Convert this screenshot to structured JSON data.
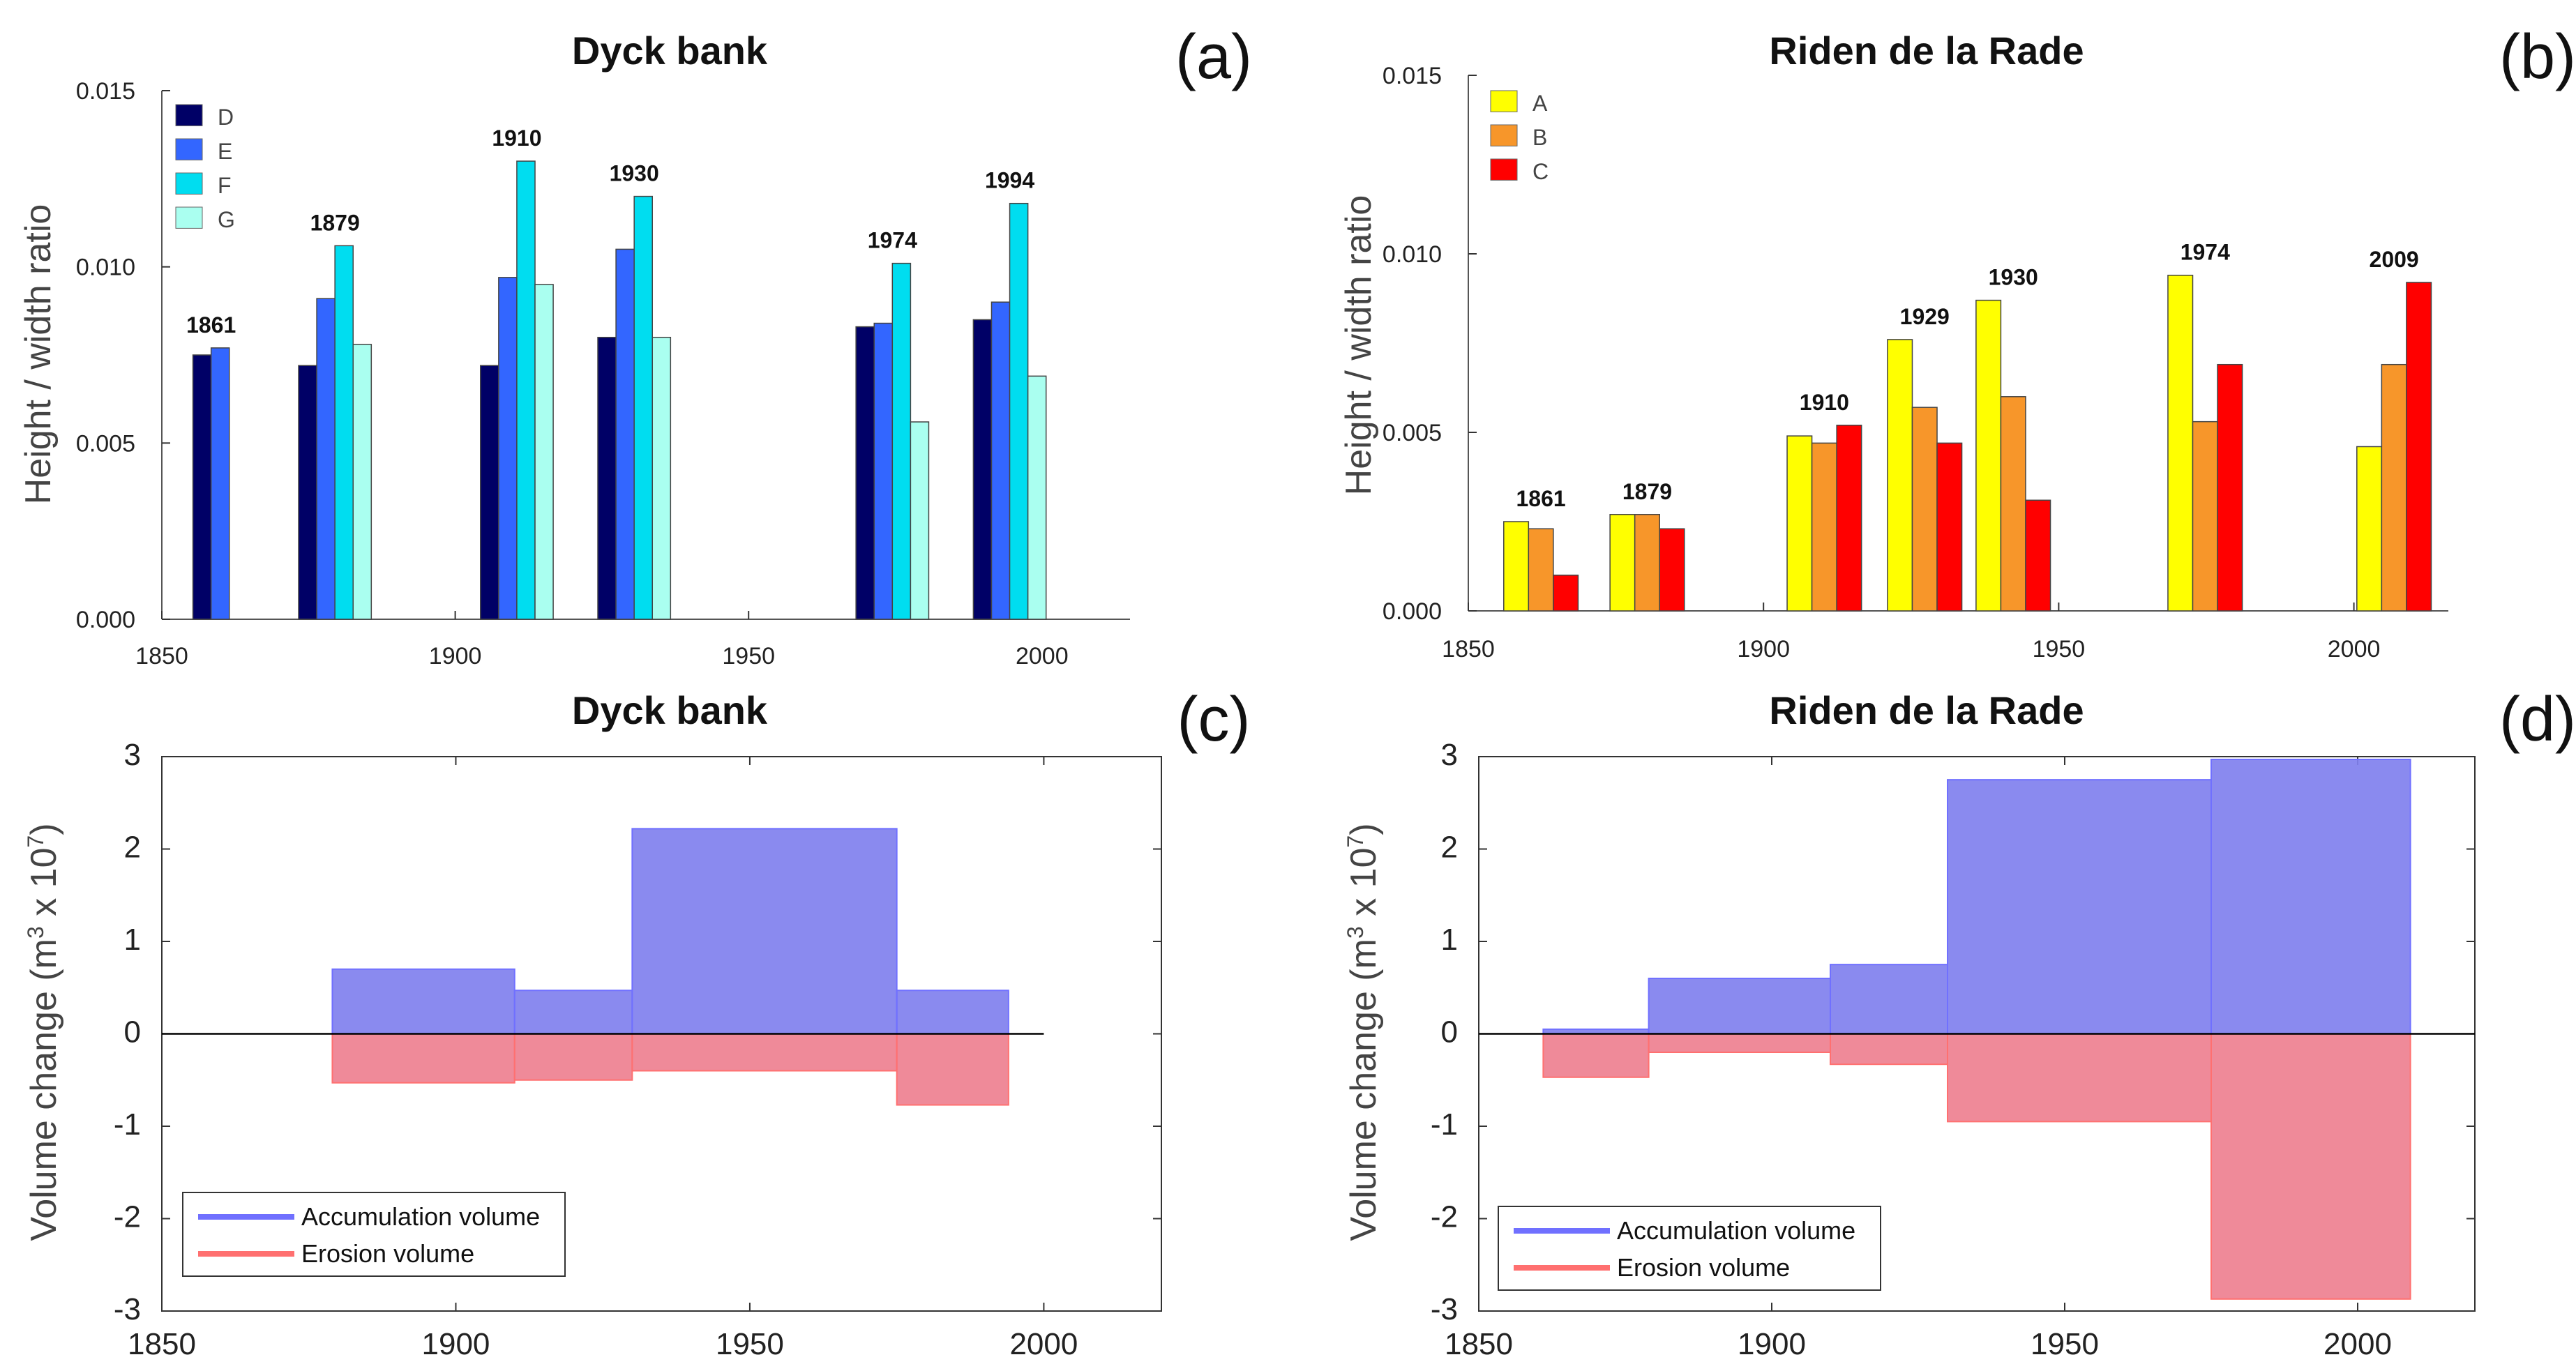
{
  "figure": {
    "panels": [
      "a",
      "b",
      "c",
      "d"
    ]
  },
  "chart_data": [
    {
      "id": "a",
      "type": "bar",
      "title": "Dyck bank",
      "panel_label": "(a)",
      "xlabel": "",
      "ylabel": "Height / width ratio",
      "xlim": [
        1850,
        2015
      ],
      "ylim": [
        0,
        0.015
      ],
      "xticks": [
        1850,
        1900,
        1950,
        2000
      ],
      "xtick_labels": [
        "1850",
        "1900",
        "1950",
        "2000"
      ],
      "yticks": [
        0,
        0.005,
        0.01,
        0.015
      ],
      "ytick_labels": [
        "0.000",
        "0.005",
        "0.010",
        "0.015"
      ],
      "bar_width_years": 3.1,
      "legend_position": "top-left",
      "series": [
        {
          "name": "D",
          "color": "#000066"
        },
        {
          "name": "E",
          "color": "#3366ff"
        },
        {
          "name": "F",
          "color": "#00ddf0"
        },
        {
          "name": "G",
          "color": "#aafff0"
        }
      ],
      "groups": [
        {
          "year_label": "1861",
          "x_start": 1855.3,
          "values": [
            0.0075,
            0.0077,
            null,
            null
          ]
        },
        {
          "year_label": "1879",
          "x_start": 1873.3,
          "values": [
            0.0072,
            0.0091,
            0.0106,
            0.0078
          ]
        },
        {
          "year_label": "1910",
          "x_start": 1904.3,
          "values": [
            0.0072,
            0.0097,
            0.013,
            0.0095
          ]
        },
        {
          "year_label": "1930",
          "x_start": 1924.3,
          "values": [
            0.008,
            0.0105,
            0.012,
            0.008
          ]
        },
        {
          "year_label": "1974",
          "x_start": 1968.3,
          "values": [
            0.0083,
            0.0084,
            0.0101,
            0.0056
          ]
        },
        {
          "year_label": "1994",
          "x_start": 1988.3,
          "values": [
            0.0085,
            0.009,
            0.0118,
            0.0069
          ]
        }
      ]
    },
    {
      "id": "b",
      "type": "bar",
      "title": "Riden de la Rade",
      "panel_label": "(b)",
      "xlabel": "",
      "ylabel": "Height / width ratio",
      "xlim": [
        1850,
        2016
      ],
      "ylim": [
        0,
        0.015
      ],
      "xticks": [
        1850,
        1900,
        1950,
        2000
      ],
      "xtick_labels": [
        "1850",
        "1900",
        "1950",
        "2000"
      ],
      "yticks": [
        0,
        0.005,
        0.01,
        0.015
      ],
      "ytick_labels": [
        "0.000",
        "0.005",
        "0.010",
        "0.015"
      ],
      "bar_width_years": 4.2,
      "legend_position": "top-left",
      "series": [
        {
          "name": "A",
          "color": "#ffff00"
        },
        {
          "name": "B",
          "color": "#f7962a"
        },
        {
          "name": "C",
          "color": "#ff0000"
        }
      ],
      "groups": [
        {
          "year_label": "1861",
          "x_start": 1856.0,
          "values": [
            0.0025,
            0.0023,
            0.001
          ]
        },
        {
          "year_label": "1879",
          "x_start": 1874.0,
          "values": [
            0.0027,
            0.0027,
            0.0023
          ]
        },
        {
          "year_label": "1910",
          "x_start": 1904.0,
          "values": [
            0.0049,
            0.0047,
            0.0052
          ]
        },
        {
          "year_label": "1929",
          "x_start": 1921.0,
          "values": [
            0.0076,
            0.0057,
            0.0047
          ]
        },
        {
          "year_label": "1930",
          "x_start": 1936.0,
          "values": [
            0.0087,
            0.006,
            0.0031
          ]
        },
        {
          "year_label": "1974",
          "x_start": 1968.5,
          "values": [
            0.0094,
            0.0053,
            0.0069
          ]
        },
        {
          "year_label": "2009",
          "x_start": 2000.5,
          "values": [
            0.0046,
            0.0069,
            0.0092
          ]
        }
      ]
    },
    {
      "id": "c",
      "type": "area",
      "title": "Dyck bank",
      "panel_label": "(c)",
      "xlabel": "",
      "ylabel_main": "Volume change (m",
      "ylabel_sup": "3",
      "ylabel_mid": " x 10",
      "ylabel_sup2": "7",
      "ylabel_end": ")",
      "xlim": [
        1850,
        2020
      ],
      "ylim": [
        -3,
        3
      ],
      "zero_line_xmax": 2000,
      "xticks": [
        1850,
        1900,
        1950,
        2000
      ],
      "xtick_labels": [
        "1850",
        "1900",
        "1950",
        "2000"
      ],
      "yticks": [
        -3,
        -2,
        -1,
        0,
        1,
        2,
        3
      ],
      "ytick_labels": [
        "-3",
        "-2",
        "-1",
        "0",
        "1",
        "2",
        "3"
      ],
      "legend_position": "bottom-left",
      "series": [
        {
          "name": "Accumulation volume",
          "color": "#8080ee",
          "legend_color": "#7070ff",
          "segments": [
            {
              "x0": 1879,
              "x1": 1910,
              "value": 0.7
            },
            {
              "x0": 1910,
              "x1": 1930,
              "value": 0.47
            },
            {
              "x0": 1930,
              "x1": 1975,
              "value": 2.22
            },
            {
              "x0": 1975,
              "x1": 1994,
              "value": 0.47
            }
          ]
        },
        {
          "name": "Erosion volume",
          "color": "#ee8090",
          "legend_color": "#ff7070",
          "segments": [
            {
              "x0": 1879,
              "x1": 1910,
              "value": -0.53
            },
            {
              "x0": 1910,
              "x1": 1930,
              "value": -0.5
            },
            {
              "x0": 1930,
              "x1": 1975,
              "value": -0.4
            },
            {
              "x0": 1975,
              "x1": 1994,
              "value": -0.77
            }
          ]
        }
      ]
    },
    {
      "id": "d",
      "type": "area",
      "title": "Riden de la Rade",
      "panel_label": "(d)",
      "xlabel": "",
      "ylabel_main": "Volume change (m",
      "ylabel_sup": "3",
      "ylabel_mid": " x 10",
      "ylabel_sup2": "7",
      "ylabel_end": ")",
      "xlim": [
        1850,
        2020
      ],
      "ylim": [
        -3,
        3
      ],
      "zero_line_xmax": 2020,
      "xticks": [
        1850,
        1900,
        1950,
        2000
      ],
      "xtick_labels": [
        "1850",
        "1900",
        "1950",
        "2000"
      ],
      "yticks": [
        -3,
        -2,
        -1,
        0,
        1,
        2,
        3
      ],
      "ytick_labels": [
        "-3",
        "-2",
        "-1",
        "0",
        "1",
        "2",
        "3"
      ],
      "legend_position": "bottom-left",
      "series": [
        {
          "name": "Accumulation volume",
          "color": "#8080ee",
          "legend_color": "#7070ff",
          "segments": [
            {
              "x0": 1861,
              "x1": 1879,
              "value": 0.05
            },
            {
              "x0": 1879,
              "x1": 1910,
              "value": 0.6
            },
            {
              "x0": 1910,
              "x1": 1930,
              "value": 0.75
            },
            {
              "x0": 1930,
              "x1": 1975,
              "value": 2.75
            },
            {
              "x0": 1975,
              "x1": 2009,
              "value": 2.97
            }
          ]
        },
        {
          "name": "Erosion volume",
          "color": "#ee8090",
          "legend_color": "#ff7070",
          "segments": [
            {
              "x0": 1861,
              "x1": 1879,
              "value": -0.47
            },
            {
              "x0": 1879,
              "x1": 1910,
              "value": -0.2
            },
            {
              "x0": 1910,
              "x1": 1930,
              "value": -0.33
            },
            {
              "x0": 1930,
              "x1": 1975,
              "value": -0.95
            },
            {
              "x0": 1975,
              "x1": 2009,
              "value": -2.87
            }
          ]
        }
      ]
    }
  ]
}
